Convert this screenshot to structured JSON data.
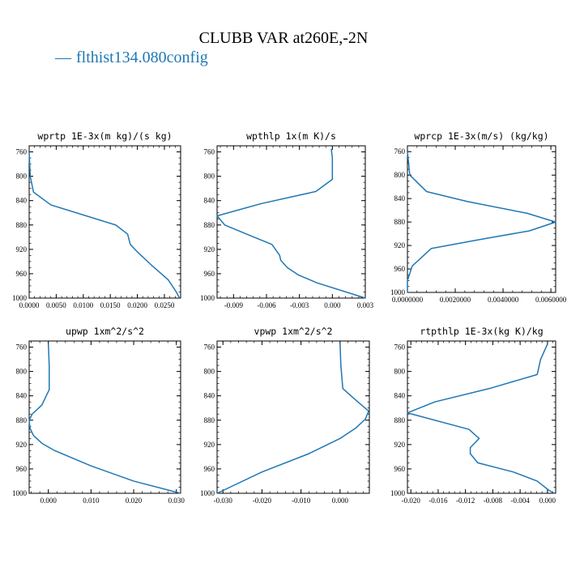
{
  "title": "CLUBB VAR at260E,-2N",
  "legend": {
    "dash": "—",
    "label": "flthist134.080config"
  },
  "colors": {
    "line": "#1f77b4",
    "axis": "#000000"
  },
  "chart_data": [
    {
      "type": "line",
      "title": "wprtp  1E-3x(m kg)/(s kg)",
      "xlim": [
        0.0,
        0.028
      ],
      "ylim": [
        1000,
        750
      ],
      "y_inverted": true,
      "xticks": [
        "0.0000",
        "0.0050",
        "0.0100",
        "0.0150",
        "0.0200",
        "0.0250"
      ],
      "xtick_values": [
        0.0,
        0.005,
        0.01,
        0.015,
        0.02,
        0.025
      ],
      "yticks": [
        760,
        800,
        840,
        880,
        920,
        960,
        1000
      ],
      "series": [
        {
          "x": [
            0.0,
            0.0002,
            0.0008,
            0.004,
            0.016,
            0.0182,
            0.0187,
            0.0201,
            0.0225,
            0.0257,
            0.0272,
            0.0278
          ],
          "y": [
            760,
            800,
            826,
            847,
            880,
            895,
            912,
            925,
            945,
            970,
            990,
            1000
          ]
        }
      ]
    },
    {
      "type": "line",
      "title": "wpthlp  1x(m K)/s",
      "xlim": [
        -0.0105,
        0.003
      ],
      "ylim": [
        1000,
        750
      ],
      "y_inverted": true,
      "xticks": [
        "-0.009",
        "-0.006",
        "-0.003",
        "0.000",
        "0.003"
      ],
      "xtick_values": [
        -0.009,
        -0.006,
        -0.003,
        0.0,
        0.003
      ],
      "yticks": [
        760,
        800,
        840,
        880,
        920,
        960,
        1000
      ],
      "series": [
        {
          "x": [
            -0.0001,
            0.0,
            0.0,
            -0.0015,
            -0.0065,
            -0.0105,
            -0.0098,
            -0.0078,
            -0.0055,
            -0.0048,
            -0.0047,
            -0.0041,
            -0.0031,
            -0.0014,
            0.003
          ],
          "y": [
            755,
            770,
            805,
            825,
            845,
            865,
            880,
            895,
            912,
            930,
            938,
            950,
            962,
            975,
            1000
          ]
        }
      ]
    },
    {
      "type": "line",
      "title": "wprcp  1E-3x(m/s) (kg/kg)",
      "xlim": [
        0.0,
        0.0062
      ],
      "ylim": [
        1000,
        750
      ],
      "y_inverted": true,
      "xticks": [
        "0.0000000",
        "0.0020000",
        "0.0040000",
        "0.0060000"
      ],
      "xtick_values": [
        0.0,
        0.002,
        0.004,
        0.006
      ],
      "yticks": [
        760,
        800,
        840,
        880,
        920,
        960,
        1000
      ],
      "series": [
        {
          "x": [
            0.0,
            0.0001,
            0.0008,
            0.0025,
            0.005,
            0.0062,
            0.0051,
            0.003,
            0.001,
            0.0006,
            0.0002,
            0.0,
            0.0
          ],
          "y": [
            760,
            800,
            828,
            845,
            865,
            880,
            895,
            910,
            925,
            940,
            955,
            980,
            1000
          ]
        }
      ]
    },
    {
      "type": "line",
      "title": "upwp  1xm^2/s^2",
      "xlim": [
        -0.0045,
        0.031
      ],
      "ylim": [
        1000,
        750
      ],
      "y_inverted": true,
      "xticks": [
        "0.000",
        "0.010",
        "0.020",
        "0.030"
      ],
      "xtick_values": [
        0.0,
        0.01,
        0.02,
        0.03
      ],
      "yticks": [
        760,
        800,
        840,
        880,
        920,
        960,
        1000
      ],
      "series": [
        {
          "x": [
            0.0,
            0.0002,
            0.0002,
            -0.0005,
            -0.0015,
            -0.0038,
            -0.0045,
            -0.0043,
            -0.0035,
            -0.0015,
            0.0015,
            0.01,
            0.02,
            0.031
          ],
          "y": [
            755,
            790,
            830,
            840,
            855,
            870,
            880,
            893,
            905,
            918,
            930,
            955,
            980,
            1000
          ]
        }
      ]
    },
    {
      "type": "line",
      "title": "vpwp  1xm^2/s^2",
      "xlim": [
        -0.0315,
        0.0075
      ],
      "ylim": [
        1000,
        750
      ],
      "y_inverted": true,
      "xticks": [
        "-0.030",
        "-0.020",
        "-0.010",
        "0.000"
      ],
      "xtick_values": [
        -0.03,
        -0.02,
        -0.01,
        0.0
      ],
      "yticks": [
        760,
        800,
        840,
        880,
        920,
        960,
        1000
      ],
      "series": [
        {
          "x": [
            0.0,
            0.0002,
            0.0007,
            0.0042,
            0.0073,
            0.0065,
            0.004,
            0.0,
            -0.008,
            -0.02,
            -0.0315
          ],
          "y": [
            755,
            790,
            828,
            848,
            865,
            878,
            893,
            910,
            935,
            965,
            1000
          ]
        }
      ]
    },
    {
      "type": "line",
      "title": "rtpthlp  1E-3x(kg K)/kg",
      "xlim": [
        -0.0205,
        0.0012
      ],
      "ylim": [
        1000,
        750
      ],
      "y_inverted": true,
      "xticks": [
        "-0.020",
        "-0.016",
        "-0.012",
        "-0.008",
        "-0.004",
        "0.000"
      ],
      "xtick_values": [
        -0.02,
        -0.016,
        -0.012,
        -0.008,
        -0.004,
        0.0
      ],
      "yticks": [
        760,
        800,
        840,
        880,
        920,
        960,
        1000
      ],
      "series": [
        {
          "x": [
            0.0,
            -0.001,
            -0.0015,
            -0.0085,
            -0.0165,
            -0.0205,
            -0.0115,
            -0.01,
            -0.0113,
            -0.0113,
            -0.0102,
            -0.005,
            -0.0015,
            0.0002,
            0.001
          ],
          "y": [
            755,
            780,
            805,
            828,
            850,
            868,
            895,
            910,
            925,
            935,
            950,
            965,
            980,
            995,
            1000
          ]
        }
      ]
    }
  ]
}
